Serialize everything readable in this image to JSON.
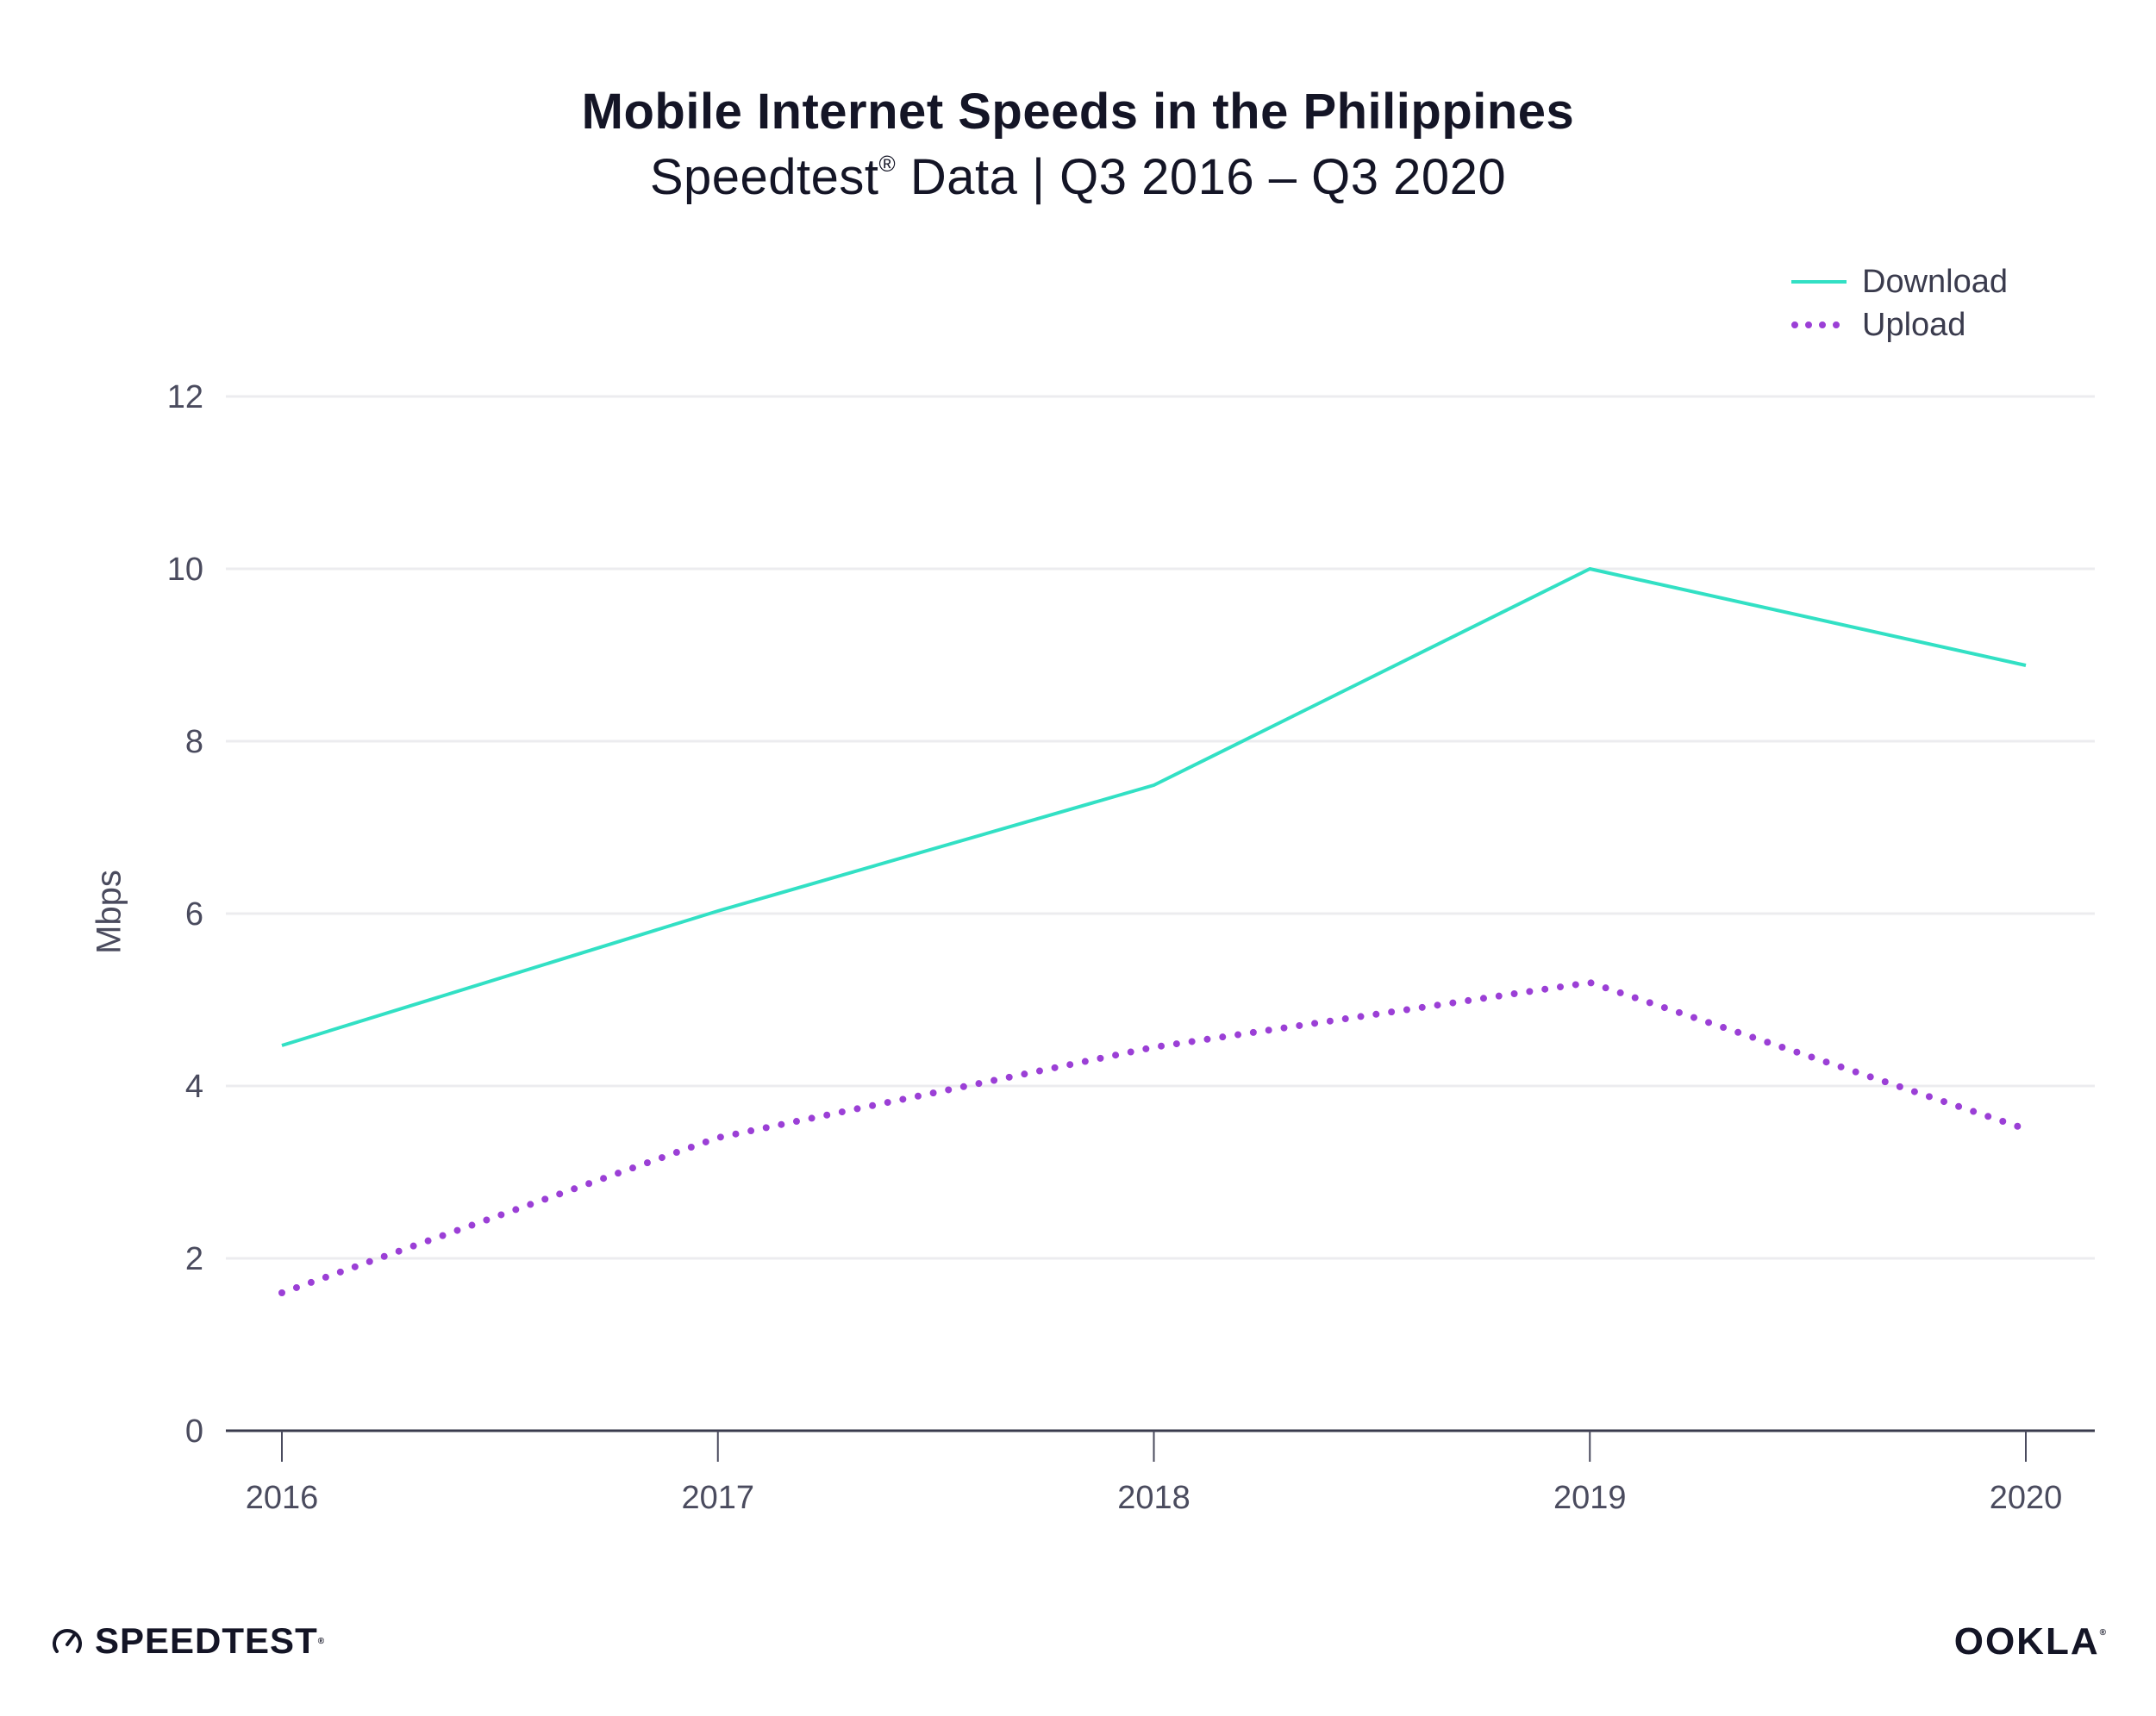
{
  "chart_data": {
    "type": "line",
    "title": "Mobile Internet Speeds in the Philippines",
    "subtitle_main": "Speedtest",
    "subtitle_mark": "®",
    "subtitle_rest": " Data | Q3 2016 – Q3 2020",
    "xlabel": "",
    "ylabel": "Mbps",
    "x": [
      "2016",
      "2017",
      "2018",
      "2019",
      "2020"
    ],
    "ylim": [
      0,
      12
    ],
    "yticks": [
      "0",
      "2",
      "4",
      "6",
      "8",
      "10",
      "12"
    ],
    "grid": true,
    "legend_position": "top-right",
    "series": [
      {
        "name": "Download",
        "values": [
          4.47,
          6.03,
          7.49,
          10.0,
          8.88
        ],
        "color": "#32e0c4",
        "style": "solid"
      },
      {
        "name": "Upload",
        "values": [
          1.6,
          3.4,
          4.45,
          5.2,
          3.5
        ],
        "color": "#9b3fd6",
        "style": "dotted"
      }
    ]
  },
  "branding": {
    "left_logo": "SPEEDTEST",
    "left_mark": "®",
    "right_logo": "OOKLA",
    "right_mark": "®",
    "left_icon": "speedometer-icon"
  }
}
